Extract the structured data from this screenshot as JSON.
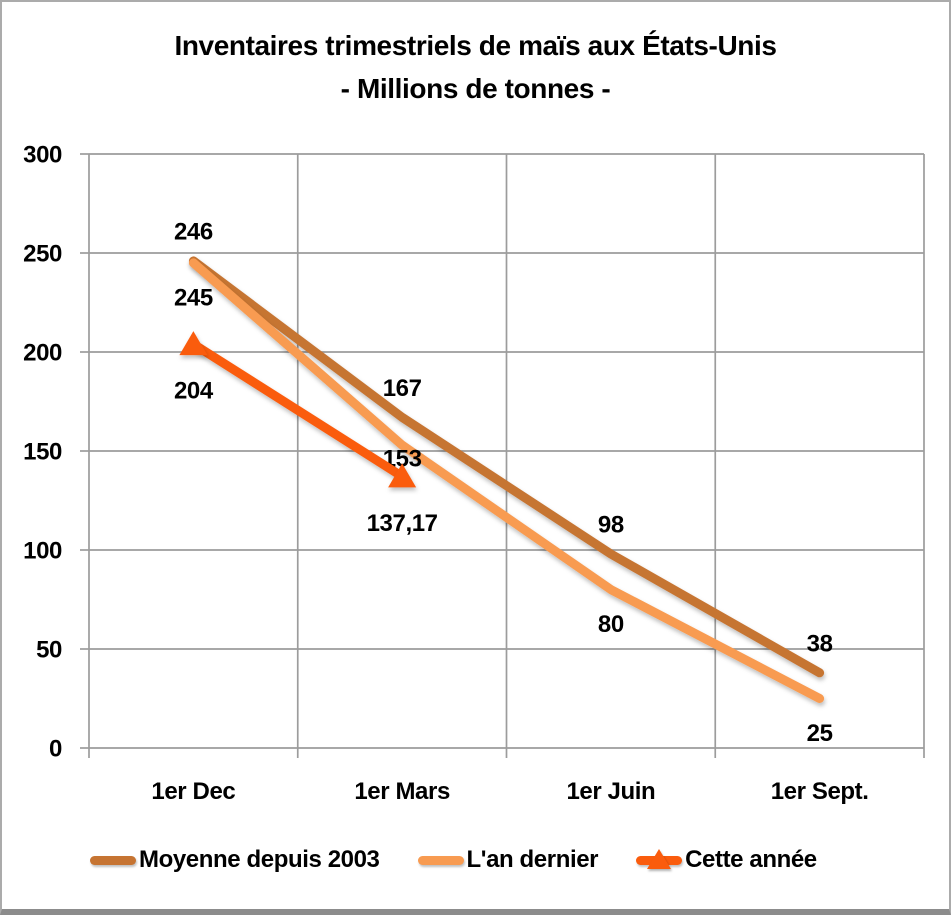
{
  "title": {
    "line1": "Inventaires trimestriels de maïs aux États-Unis",
    "line2": "- Millions de tonnes -"
  },
  "chart_data": {
    "type": "line",
    "title": "Inventaires trimestriels de maïs aux États-Unis - Millions de tonnes -",
    "categories": [
      "1er Dec",
      "1er Mars",
      "1er Juin",
      "1er Sept."
    ],
    "ylim": [
      0,
      300
    ],
    "yticks": [
      300,
      250,
      200,
      150,
      100,
      50,
      0
    ],
    "grid": true,
    "legend_position": "bottom",
    "axis_color": "#9C9C9C",
    "label_color": "#000000",
    "series": [
      {
        "name": "Moyenne depuis 2003",
        "color": "#C67432",
        "values": [
          246,
          167,
          98,
          38
        ],
        "point_labels": [
          "246",
          "167",
          "98",
          "38"
        ],
        "marker": "none",
        "label_placement": "above",
        "label_dy": -30
      },
      {
        "name": "L'an dernier",
        "color": "#F89B51",
        "values": [
          245,
          153,
          80,
          25
        ],
        "point_labels": [
          "245",
          "153",
          "80",
          "25"
        ],
        "marker": "none",
        "label_placement": "below",
        "label_dy": 34,
        "label_dy_overrides": {
          "1": 13
        }
      },
      {
        "name": "Cette année",
        "color": "#FA5C0D",
        "values": [
          204,
          137.17,
          null,
          null
        ],
        "point_labels": [
          "204",
          "137,17",
          "",
          ""
        ],
        "marker": "triangle",
        "label_placement": "below",
        "label_dy": 46
      }
    ]
  }
}
